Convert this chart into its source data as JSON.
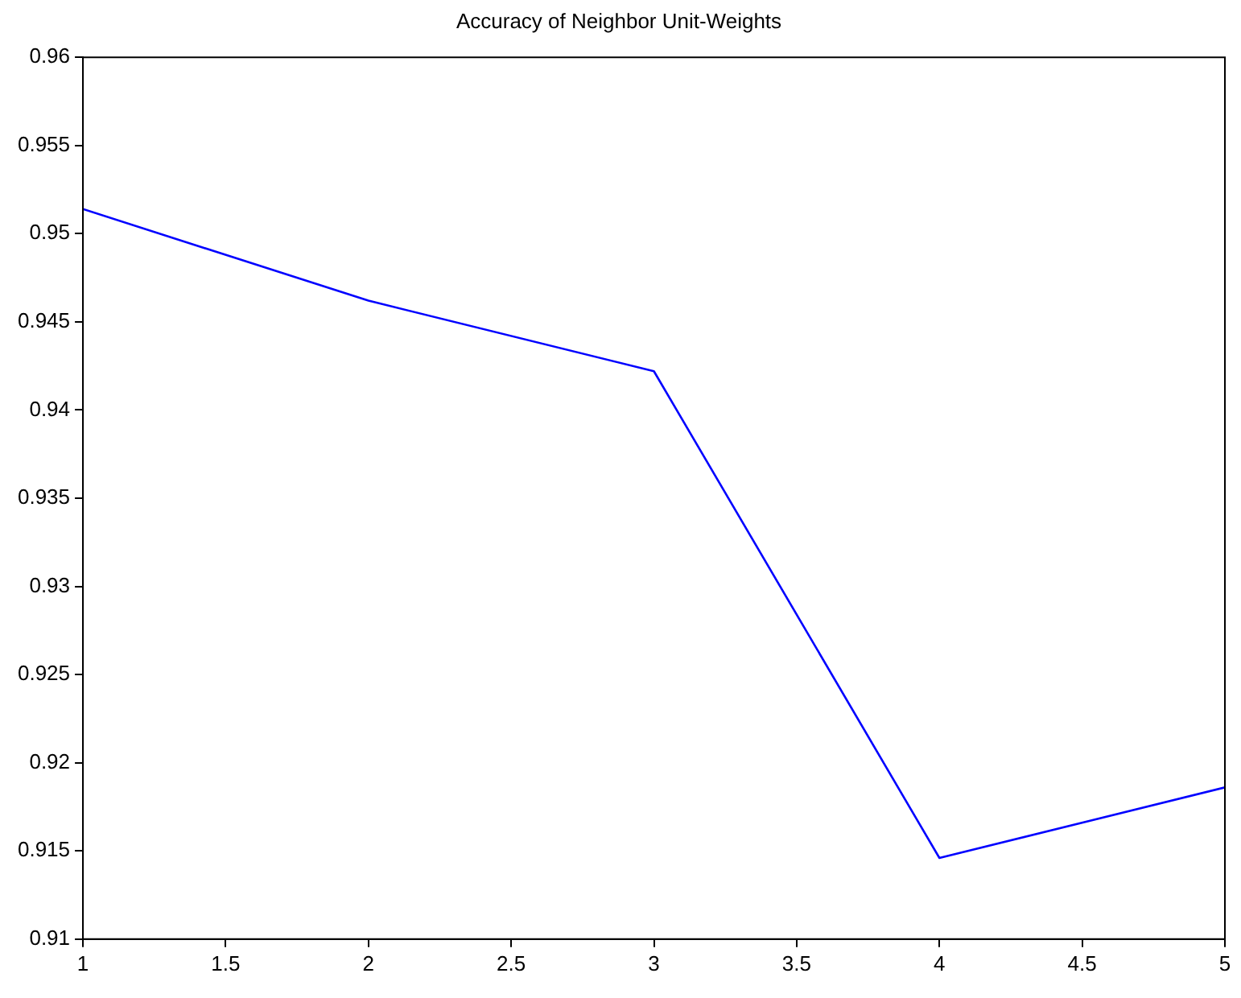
{
  "chart_data": {
    "type": "line",
    "title": "Accuracy of Neighbor Unit-Weights",
    "x": [
      1,
      2,
      3,
      4,
      5
    ],
    "series": [
      {
        "color": "#0000ff",
        "values": [
          0.9514,
          0.9462,
          0.9422,
          0.9146,
          0.9186
        ]
      }
    ],
    "xlim": [
      1,
      5
    ],
    "xticks": [
      1,
      1.5,
      2,
      2.5,
      3,
      3.5,
      4,
      4.5,
      5
    ],
    "ylim": [
      0.91,
      0.96
    ],
    "yticks": [
      0.91,
      0.915,
      0.92,
      0.925,
      0.93,
      0.935,
      0.94,
      0.945,
      0.95,
      0.955,
      0.96
    ],
    "grid": false,
    "legend": false
  }
}
